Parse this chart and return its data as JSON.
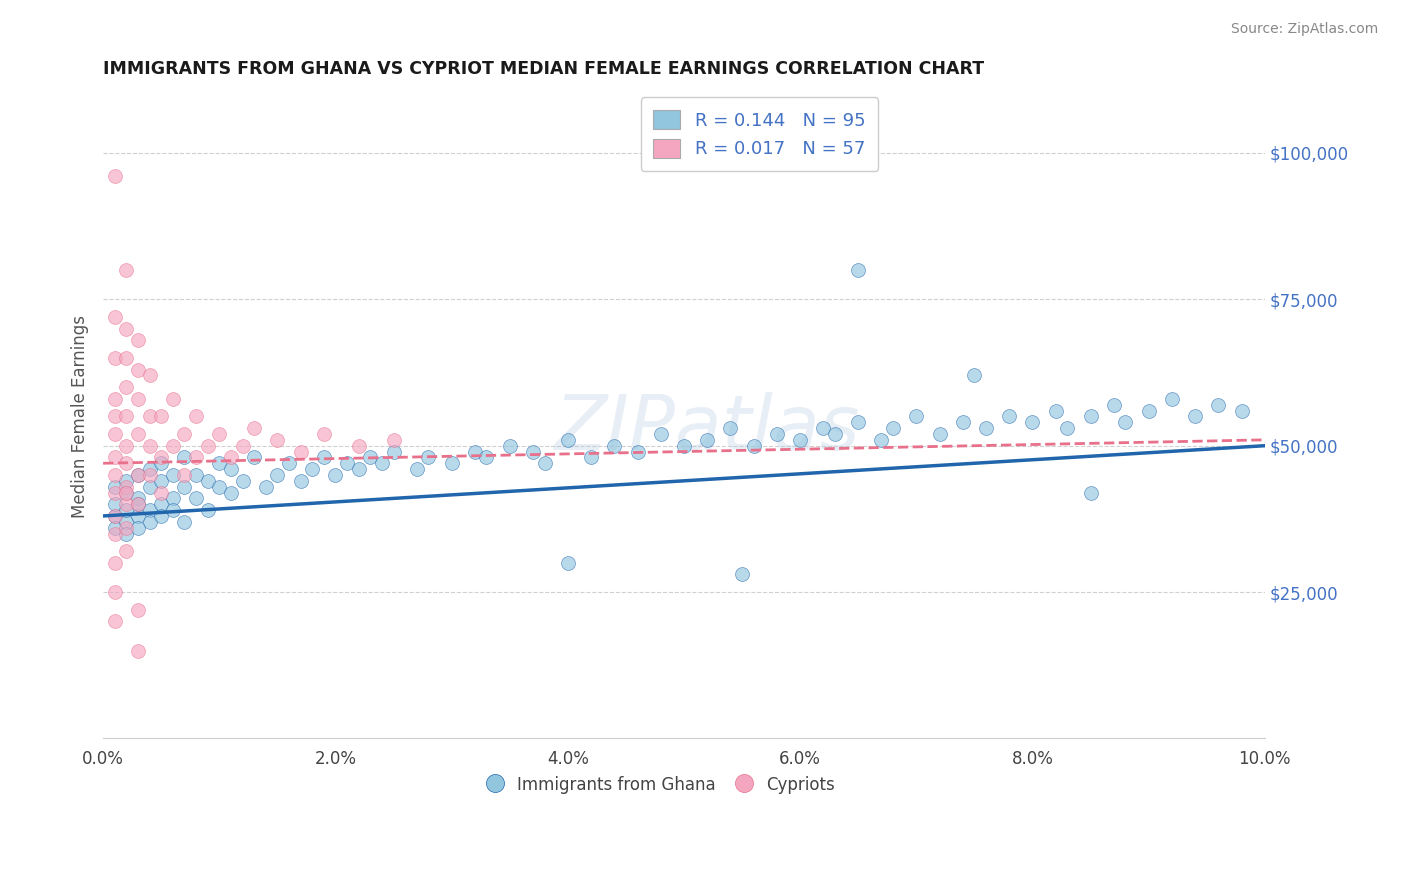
{
  "title": "IMMIGRANTS FROM GHANA VS CYPRIOT MEDIAN FEMALE EARNINGS CORRELATION CHART",
  "source": "Source: ZipAtlas.com",
  "ylabel": "Median Female Earnings",
  "xlim": [
    0.0,
    0.1
  ],
  "ylim": [
    0,
    110000
  ],
  "xticks": [
    0.0,
    0.02,
    0.04,
    0.06,
    0.08,
    0.1
  ],
  "xtick_labels": [
    "0.0%",
    "2.0%",
    "4.0%",
    "6.0%",
    "8.0%",
    "10.0%"
  ],
  "ytick_values": [
    0,
    25000,
    50000,
    75000,
    100000
  ],
  "ytick_labels": [
    "",
    "$25,000",
    "$50,000",
    "$75,000",
    "$100,000"
  ],
  "watermark": "ZIPatlas",
  "blue_color": "#92c5de",
  "pink_color": "#f4a6c0",
  "blue_line_color": "#2166ac",
  "pink_line_color": "#e8708a",
  "R_blue": 0.144,
  "N_blue": 95,
  "R_pink": 0.017,
  "N_pink": 57,
  "legend_label_blue": "Immigrants from Ghana",
  "legend_label_pink": "Cypriots",
  "blue_x": [
    0.001,
    0.001,
    0.001,
    0.001,
    0.002,
    0.002,
    0.002,
    0.002,
    0.002,
    0.003,
    0.003,
    0.003,
    0.003,
    0.003,
    0.004,
    0.004,
    0.004,
    0.004,
    0.005,
    0.005,
    0.005,
    0.005,
    0.006,
    0.006,
    0.006,
    0.007,
    0.007,
    0.007,
    0.008,
    0.008,
    0.009,
    0.009,
    0.01,
    0.01,
    0.011,
    0.011,
    0.012,
    0.013,
    0.014,
    0.015,
    0.016,
    0.017,
    0.018,
    0.019,
    0.02,
    0.021,
    0.022,
    0.023,
    0.024,
    0.025,
    0.027,
    0.028,
    0.03,
    0.032,
    0.033,
    0.035,
    0.037,
    0.038,
    0.04,
    0.042,
    0.044,
    0.046,
    0.048,
    0.05,
    0.052,
    0.054,
    0.056,
    0.058,
    0.06,
    0.062,
    0.063,
    0.065,
    0.067,
    0.068,
    0.07,
    0.072,
    0.074,
    0.076,
    0.078,
    0.08,
    0.082,
    0.083,
    0.085,
    0.087,
    0.088,
    0.09,
    0.092,
    0.094,
    0.096,
    0.098,
    0.04,
    0.055,
    0.065,
    0.075,
    0.085
  ],
  "blue_y": [
    38000,
    43000,
    36000,
    40000,
    42000,
    37000,
    44000,
    39000,
    35000,
    41000,
    45000,
    38000,
    36000,
    40000,
    43000,
    39000,
    46000,
    37000,
    44000,
    40000,
    38000,
    47000,
    41000,
    45000,
    39000,
    43000,
    48000,
    37000,
    45000,
    41000,
    44000,
    39000,
    47000,
    43000,
    42000,
    46000,
    44000,
    48000,
    43000,
    45000,
    47000,
    44000,
    46000,
    48000,
    45000,
    47000,
    46000,
    48000,
    47000,
    49000,
    46000,
    48000,
    47000,
    49000,
    48000,
    50000,
    49000,
    47000,
    51000,
    48000,
    50000,
    49000,
    52000,
    50000,
    51000,
    53000,
    50000,
    52000,
    51000,
    53000,
    52000,
    54000,
    51000,
    53000,
    55000,
    52000,
    54000,
    53000,
    55000,
    54000,
    56000,
    53000,
    55000,
    57000,
    54000,
    56000,
    58000,
    55000,
    57000,
    56000,
    30000,
    28000,
    80000,
    62000,
    42000
  ],
  "pink_x": [
    0.001,
    0.001,
    0.001,
    0.001,
    0.001,
    0.001,
    0.001,
    0.001,
    0.001,
    0.001,
    0.002,
    0.002,
    0.002,
    0.002,
    0.002,
    0.002,
    0.002,
    0.002,
    0.003,
    0.003,
    0.003,
    0.003,
    0.003,
    0.003,
    0.004,
    0.004,
    0.004,
    0.004,
    0.005,
    0.005,
    0.005,
    0.006,
    0.006,
    0.007,
    0.007,
    0.008,
    0.008,
    0.009,
    0.01,
    0.011,
    0.012,
    0.013,
    0.015,
    0.017,
    0.019,
    0.022,
    0.025,
    0.001,
    0.002,
    0.001,
    0.001,
    0.002,
    0.003,
    0.001,
    0.002,
    0.003,
    0.002
  ],
  "pink_y": [
    48000,
    52000,
    45000,
    55000,
    42000,
    58000,
    65000,
    38000,
    72000,
    35000,
    50000,
    55000,
    47000,
    60000,
    43000,
    65000,
    40000,
    70000,
    52000,
    58000,
    45000,
    63000,
    40000,
    68000,
    50000,
    55000,
    45000,
    62000,
    48000,
    55000,
    42000,
    50000,
    58000,
    45000,
    52000,
    48000,
    55000,
    50000,
    52000,
    48000,
    50000,
    53000,
    51000,
    49000,
    52000,
    50000,
    51000,
    30000,
    36000,
    25000,
    96000,
    80000,
    22000,
    20000,
    32000,
    15000,
    42000
  ]
}
